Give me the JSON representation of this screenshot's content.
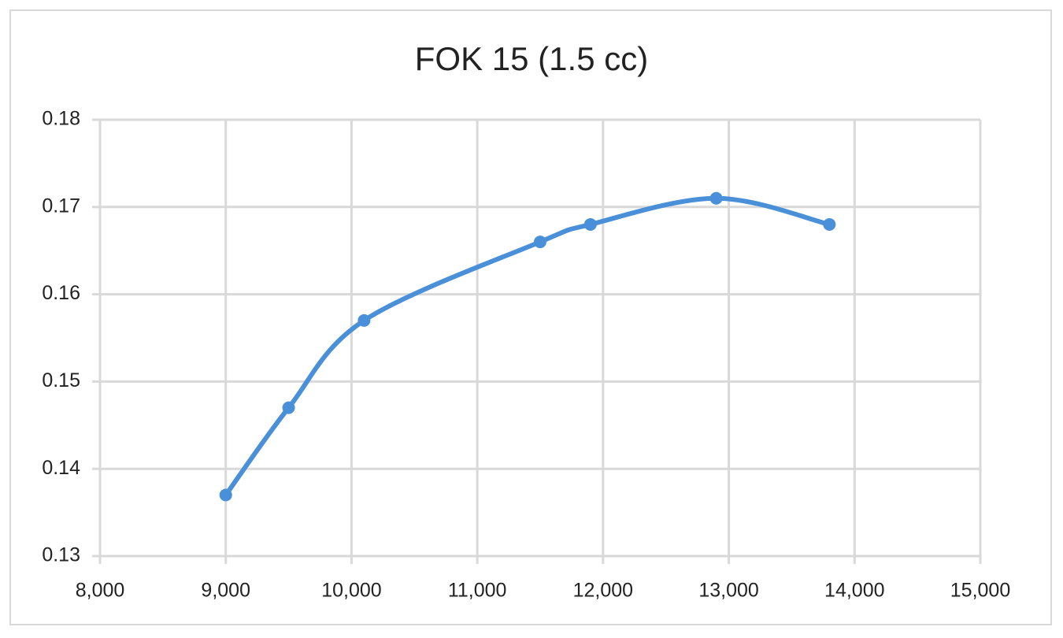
{
  "chart_data": {
    "type": "line",
    "title": "FOK 15 (1.5 cc)",
    "x": [
      9000,
      9500,
      10100,
      11500,
      11900,
      12900,
      13800
    ],
    "series": [
      {
        "name": "FOK 15",
        "color": "#4a90d9",
        "values": [
          0.137,
          0.147,
          0.157,
          0.166,
          0.168,
          0.171,
          0.168
        ]
      }
    ],
    "xlim": [
      8000,
      15000
    ],
    "xticks": [
      {
        "value": 8000,
        "label": "8,000"
      },
      {
        "value": 9000,
        "label": "9,000"
      },
      {
        "value": 10000,
        "label": "10,000"
      },
      {
        "value": 11000,
        "label": "11,000"
      },
      {
        "value": 12000,
        "label": "12,000"
      },
      {
        "value": 13000,
        "label": "13,000"
      },
      {
        "value": 14000,
        "label": "14,000"
      },
      {
        "value": 15000,
        "label": "15,000"
      }
    ],
    "ylim": [
      0.13,
      0.18
    ],
    "yticks": [
      0.13,
      0.14,
      0.15,
      0.16,
      0.17,
      0.18
    ],
    "grid": true,
    "smooth": true
  }
}
